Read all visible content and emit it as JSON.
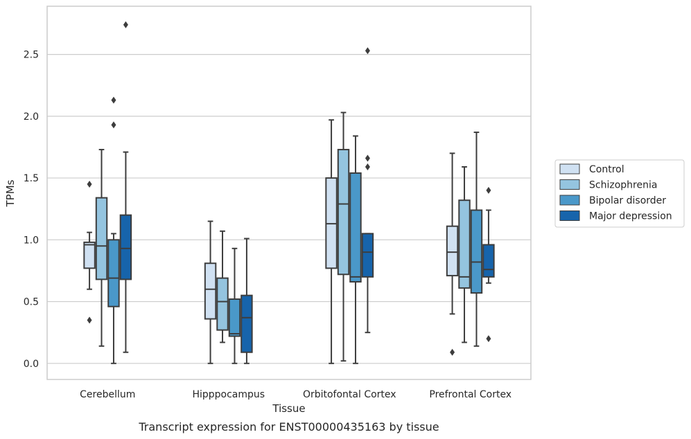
{
  "chart_data": {
    "type": "box",
    "title": "",
    "caption": "Transcript expression for ENST00000435163 by tissue",
    "xlabel": "Tissue",
    "ylabel": "TPMs",
    "ylim": [
      -0.13,
      2.89
    ],
    "yticks": [
      0.0,
      0.5,
      1.0,
      1.5,
      2.0,
      2.5
    ],
    "ytick_labels": [
      "0.0",
      "0.5",
      "1.0",
      "1.5",
      "2.0",
      "2.5"
    ],
    "grid": "horizontal",
    "legend_position": "right",
    "categories": [
      "Cerebellum",
      "Hipppocampus",
      "Orbitofontal Cortex",
      "Prefrontal Cortex"
    ],
    "series": [
      {
        "name": "Control",
        "color": "#d0e1f2",
        "boxes": [
          {
            "whislo": 0.6,
            "q1": 0.77,
            "med": 0.96,
            "q3": 0.98,
            "whishi": 1.06,
            "fliers": [
              1.45,
              0.35
            ]
          },
          {
            "whislo": 0.0,
            "q1": 0.36,
            "med": 0.6,
            "q3": 0.81,
            "whishi": 1.15,
            "fliers": []
          },
          {
            "whislo": 0.0,
            "q1": 0.77,
            "med": 1.13,
            "q3": 1.5,
            "whishi": 1.97,
            "fliers": []
          },
          {
            "whislo": 0.4,
            "q1": 0.71,
            "med": 0.9,
            "q3": 1.11,
            "whishi": 1.7,
            "fliers": [
              0.09
            ]
          }
        ]
      },
      {
        "name": "Schizophrenia",
        "color": "#94c4df",
        "boxes": [
          {
            "whislo": 0.14,
            "q1": 0.68,
            "med": 0.95,
            "q3": 1.34,
            "whishi": 1.73,
            "fliers": []
          },
          {
            "whislo": 0.17,
            "q1": 0.27,
            "med": 0.5,
            "q3": 0.69,
            "whishi": 1.07,
            "fliers": []
          },
          {
            "whislo": 0.02,
            "q1": 0.72,
            "med": 1.29,
            "q3": 1.73,
            "whishi": 2.03,
            "fliers": []
          },
          {
            "whislo": 0.17,
            "q1": 0.61,
            "med": 0.7,
            "q3": 1.32,
            "whishi": 1.59,
            "fliers": []
          }
        ]
      },
      {
        "name": "Bipolar disorder",
        "color": "#4a98c9",
        "boxes": [
          {
            "whislo": 0.0,
            "q1": 0.46,
            "med": 0.69,
            "q3": 1.0,
            "whishi": 1.05,
            "fliers": [
              2.13,
              1.93
            ]
          },
          {
            "whislo": 0.0,
            "q1": 0.22,
            "med": 0.24,
            "q3": 0.52,
            "whishi": 0.93,
            "fliers": []
          },
          {
            "whislo": 0.0,
            "q1": 0.66,
            "med": 0.7,
            "q3": 1.54,
            "whishi": 1.84,
            "fliers": []
          },
          {
            "whislo": 0.14,
            "q1": 0.57,
            "med": 0.82,
            "q3": 1.24,
            "whishi": 1.87,
            "fliers": []
          }
        ]
      },
      {
        "name": "Major depression",
        "color": "#1764ab",
        "boxes": [
          {
            "whislo": 0.09,
            "q1": 0.68,
            "med": 0.93,
            "q3": 1.2,
            "whishi": 1.71,
            "fliers": [
              2.74
            ]
          },
          {
            "whislo": 0.0,
            "q1": 0.09,
            "med": 0.37,
            "q3": 0.55,
            "whishi": 1.01,
            "fliers": []
          },
          {
            "whislo": 0.25,
            "q1": 0.7,
            "med": 0.9,
            "q3": 1.05,
            "whishi": 1.05,
            "fliers": [
              2.53,
              1.66,
              1.59
            ]
          },
          {
            "whislo": 0.65,
            "q1": 0.7,
            "med": 0.76,
            "q3": 0.96,
            "whishi": 1.24,
            "fliers": [
              1.4,
              0.2
            ]
          }
        ]
      }
    ]
  }
}
